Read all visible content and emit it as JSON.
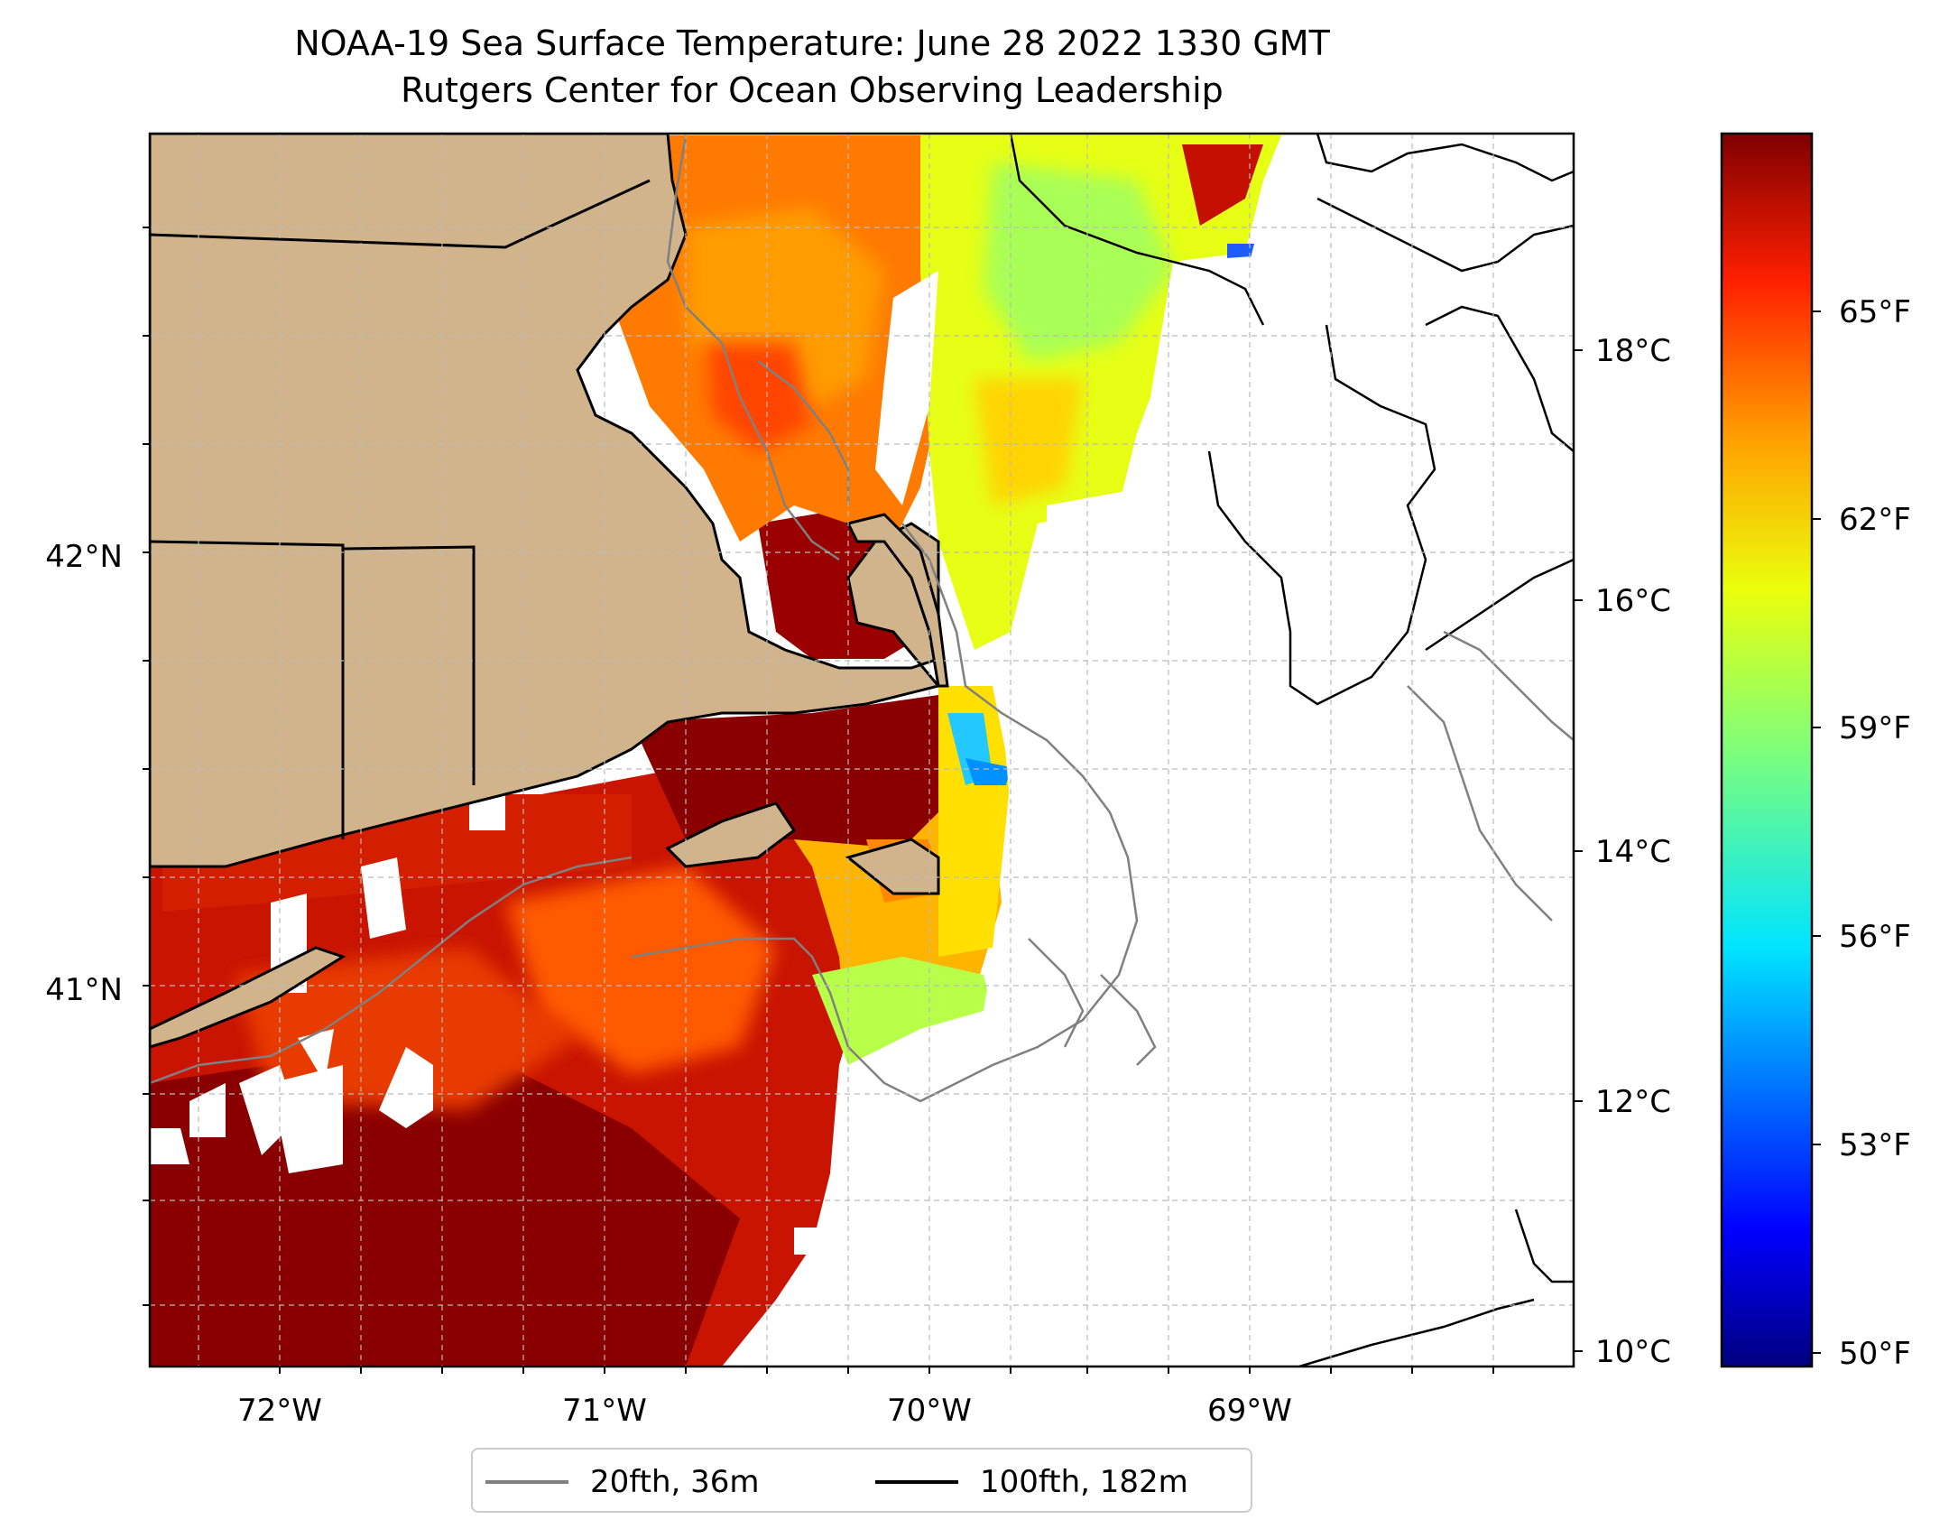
{
  "title": {
    "line1": "NOAA-19 Sea Surface Temperature: June 28 2022 1330 GMT",
    "line2": "Rutgers Center for Ocean Observing Leadership"
  },
  "map": {
    "lon_ticks": [
      "72°W",
      "71°W",
      "70°W",
      "69°W"
    ],
    "lat_ticks": [
      "42°N",
      "41°N"
    ],
    "land_color": "#D2B48C",
    "no_data_color": "#FFFFFF"
  },
  "colorbar": {
    "colormap": "jet",
    "celsius_ticks": [
      "18°C",
      "16°C",
      "14°C",
      "12°C",
      "10°C"
    ],
    "fahrenheit_ticks": [
      "65°F",
      "62°F",
      "59°F",
      "56°F",
      "53°F",
      "50°F"
    ]
  },
  "legend": {
    "items": [
      {
        "label": "20fth, 36m",
        "color": "#808080"
      },
      {
        "label": "100fth, 182m",
        "color": "#000000"
      }
    ]
  }
}
